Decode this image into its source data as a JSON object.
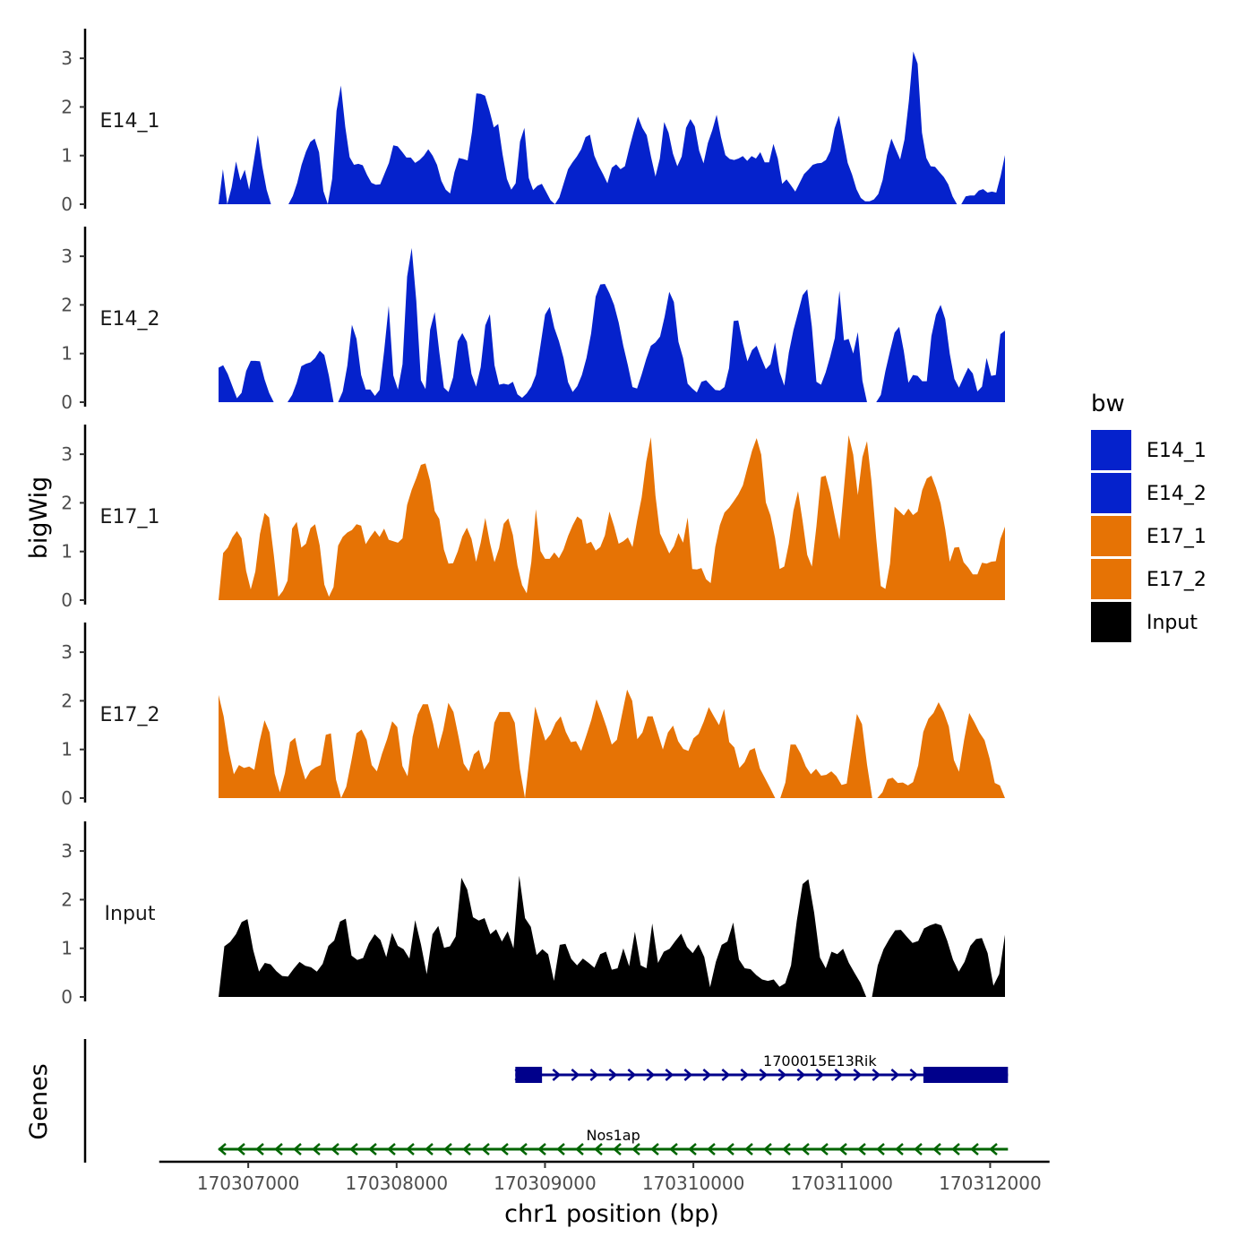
{
  "chart_data": {
    "type": "area",
    "y_axis_title": "bigWig",
    "x_axis_title": "chr1 position (bp)",
    "genes_axis_title": "Genes",
    "ylim": [
      0,
      3.6
    ],
    "y_ticks": [
      "0",
      "1",
      "2",
      "3"
    ],
    "x_range": [
      170306400,
      170312400
    ],
    "x_data_range": [
      170306800,
      170312100
    ],
    "x_ticks": [
      {
        "value": 170307000,
        "label": "170307000"
      },
      {
        "value": 170308000,
        "label": "170308000"
      },
      {
        "value": 170309000,
        "label": "170309000"
      },
      {
        "value": 170310000,
        "label": "170310000"
      },
      {
        "value": 170311000,
        "label": "170311000"
      },
      {
        "value": 170312000,
        "label": "170312000"
      }
    ],
    "legend": {
      "title": "bw",
      "entries": [
        {
          "label": "E14_1",
          "color": "#0522cc"
        },
        {
          "label": "E14_2",
          "color": "#0522cc"
        },
        {
          "label": "E17_1",
          "color": "#e67305"
        },
        {
          "label": "E17_2",
          "color": "#e67305"
        },
        {
          "label": "Input",
          "color": "#000000"
        }
      ]
    },
    "tracks": [
      {
        "name": "E14_1",
        "color": "#0522cc",
        "values": [
          0.0,
          0.72,
          0.0,
          0.35,
          0.88,
          0.49,
          0.71,
          0.3,
          0.85,
          1.42,
          0.78,
          0.3,
          0.0,
          0.0,
          0.0,
          0.0,
          0.0,
          0.17,
          0.44,
          0.81,
          1.08,
          1.28,
          1.35,
          1.07,
          0.27,
          0.0,
          0.52,
          1.92,
          2.44,
          1.59,
          0.97,
          0.81,
          0.83,
          0.8,
          0.6,
          0.44,
          0.4,
          0.41,
          0.63,
          0.85,
          1.21,
          1.19,
          1.08,
          0.96,
          0.96,
          0.85,
          0.91,
          1.0,
          1.13,
          1.0,
          0.81,
          0.48,
          0.3,
          0.22,
          0.66,
          0.95,
          0.93,
          0.9,
          1.48,
          2.28,
          2.27,
          2.23,
          1.93,
          1.58,
          1.65,
          1.03,
          0.52,
          0.3,
          0.43,
          1.29,
          1.57,
          0.54,
          0.29,
          0.38,
          0.42,
          0.25,
          0.08,
          0.0,
          0.14,
          0.43,
          0.72,
          0.86,
          0.98,
          1.13,
          1.38,
          1.43,
          1.0,
          0.79,
          0.62,
          0.43,
          0.75,
          0.82,
          0.72,
          0.78,
          1.15,
          1.49,
          1.8,
          1.57,
          1.42,
          0.97,
          0.57,
          0.94,
          1.69,
          1.47,
          1.04,
          0.78,
          0.98,
          1.57,
          1.75,
          1.6,
          1.1,
          0.84,
          1.26,
          1.52,
          1.84,
          1.38,
          1.01,
          0.93,
          0.91,
          0.94,
          0.99,
          0.89,
          0.99,
          0.94,
          1.07,
          0.86,
          0.86,
          1.24,
          0.94,
          0.42,
          0.51,
          0.39,
          0.26,
          0.44,
          0.62,
          0.71,
          0.81,
          0.84,
          0.85,
          0.91,
          1.09,
          1.56,
          1.82,
          1.33,
          0.85,
          0.61,
          0.31,
          0.13,
          0.06,
          0.06,
          0.1,
          0.21,
          0.5,
          1.01,
          1.35,
          1.13,
          0.92,
          1.33,
          2.12,
          3.14,
          2.89,
          1.47,
          0.95,
          0.78,
          0.77,
          0.66,
          0.56,
          0.41,
          0.16,
          0.0,
          0.0,
          0.16,
          0.18,
          0.18,
          0.28,
          0.31,
          0.24,
          0.26,
          0.24,
          0.58,
          1.01
        ]
      },
      {
        "name": "E14_2",
        "color": "#0522cc",
        "values": [
          0.71,
          0.76,
          0.58,
          0.33,
          0.08,
          0.19,
          0.64,
          0.85,
          0.85,
          0.84,
          0.47,
          0.19,
          0.0,
          0.0,
          0.0,
          0.0,
          0.15,
          0.4,
          0.74,
          0.79,
          0.82,
          0.91,
          1.06,
          0.97,
          0.54,
          0.0,
          0.0,
          0.22,
          0.75,
          1.59,
          1.3,
          0.56,
          0.26,
          0.26,
          0.13,
          0.25,
          1.05,
          1.98,
          0.55,
          0.26,
          0.78,
          2.58,
          3.17,
          2.08,
          0.45,
          0.27,
          1.49,
          1.85,
          1.03,
          0.3,
          0.21,
          0.51,
          1.25,
          1.42,
          1.24,
          0.58,
          0.32,
          0.72,
          1.58,
          1.81,
          0.76,
          0.36,
          0.38,
          0.36,
          0.42,
          0.16,
          0.09,
          0.18,
          0.32,
          0.56,
          1.17,
          1.8,
          1.96,
          1.53,
          1.26,
          0.91,
          0.41,
          0.21,
          0.33,
          0.56,
          0.91,
          1.41,
          2.17,
          2.42,
          2.43,
          2.24,
          2.0,
          1.64,
          1.16,
          0.76,
          0.31,
          0.28,
          0.57,
          0.89,
          1.16,
          1.23,
          1.35,
          1.76,
          2.27,
          2.06,
          1.24,
          0.91,
          0.38,
          0.28,
          0.2,
          0.42,
          0.45,
          0.35,
          0.25,
          0.24,
          0.31,
          0.7,
          1.67,
          1.68,
          1.21,
          0.84,
          1.07,
          1.16,
          0.91,
          0.68,
          0.78,
          1.23,
          0.62,
          0.34,
          1.02,
          1.48,
          1.84,
          2.2,
          2.32,
          1.56,
          0.42,
          0.36,
          0.61,
          0.94,
          1.32,
          2.29,
          1.27,
          1.3,
          1.0,
          1.44,
          0.44,
          0.0,
          0.0,
          0.0,
          0.15,
          0.64,
          1.05,
          1.43,
          1.55,
          1.05,
          0.4,
          0.56,
          0.54,
          0.43,
          0.43,
          1.36,
          1.8,
          2.0,
          1.71,
          0.99,
          0.48,
          0.3,
          0.51,
          0.71,
          0.59,
          0.22,
          0.32,
          0.91,
          0.54,
          0.56,
          1.4,
          1.47
        ]
      },
      {
        "name": "E17_1",
        "color": "#e67305",
        "values": [
          0.0,
          0.97,
          1.08,
          1.29,
          1.42,
          1.27,
          0.6,
          0.22,
          0.59,
          1.36,
          1.79,
          1.7,
          0.94,
          0.07,
          0.19,
          0.4,
          1.47,
          1.61,
          1.08,
          1.16,
          1.48,
          1.56,
          1.12,
          0.32,
          0.07,
          0.27,
          1.12,
          1.3,
          1.39,
          1.44,
          1.56,
          1.53,
          1.15,
          1.3,
          1.43,
          1.3,
          1.47,
          1.24,
          1.21,
          1.18,
          1.27,
          1.96,
          2.27,
          2.51,
          2.78,
          2.81,
          2.45,
          1.83,
          1.67,
          1.04,
          0.75,
          0.76,
          1.0,
          1.31,
          1.49,
          1.26,
          0.79,
          1.18,
          1.69,
          1.18,
          0.78,
          1.07,
          1.57,
          1.68,
          1.34,
          0.71,
          0.31,
          0.14,
          0.78,
          1.87,
          1.01,
          0.85,
          0.85,
          0.98,
          0.86,
          1.04,
          1.32,
          1.54,
          1.72,
          1.65,
          1.16,
          1.2,
          1.02,
          1.09,
          1.33,
          1.82,
          1.52,
          1.16,
          1.21,
          1.29,
          1.09,
          1.63,
          2.11,
          2.85,
          3.35,
          2.15,
          1.37,
          1.17,
          0.96,
          1.11,
          1.38,
          1.18,
          1.7,
          0.64,
          0.63,
          0.66,
          0.43,
          0.35,
          1.09,
          1.54,
          1.8,
          1.9,
          2.03,
          2.17,
          2.36,
          2.72,
          3.07,
          3.33,
          2.99,
          2.01,
          1.74,
          1.28,
          0.64,
          0.69,
          1.16,
          1.84,
          2.24,
          1.62,
          0.93,
          0.69,
          1.52,
          2.53,
          2.56,
          2.2,
          1.71,
          1.25,
          2.31,
          3.39,
          2.99,
          2.16,
          2.94,
          3.27,
          2.42,
          1.27,
          0.29,
          0.23,
          0.75,
          1.92,
          1.83,
          1.74,
          1.88,
          1.75,
          1.82,
          2.26,
          2.5,
          2.56,
          2.31,
          1.99,
          1.46,
          0.79,
          1.08,
          1.09,
          0.78,
          0.67,
          0.53,
          0.53,
          0.77,
          0.75,
          0.79,
          0.8,
          1.26,
          1.51
        ]
      },
      {
        "name": "E17_2",
        "color": "#e67305",
        "values": [
          2.12,
          1.68,
          0.97,
          0.49,
          0.68,
          0.62,
          0.65,
          0.58,
          1.15,
          1.6,
          1.35,
          0.5,
          0.12,
          0.51,
          1.15,
          1.24,
          0.73,
          0.38,
          0.56,
          0.63,
          0.68,
          1.3,
          1.33,
          0.38,
          0.0,
          0.23,
          0.76,
          1.33,
          1.41,
          1.2,
          0.68,
          0.55,
          0.91,
          1.21,
          1.58,
          1.46,
          0.66,
          0.45,
          1.26,
          1.72,
          1.93,
          1.93,
          1.53,
          1.01,
          1.4,
          1.96,
          1.77,
          1.26,
          0.71,
          0.55,
          0.9,
          0.99,
          0.59,
          0.75,
          1.55,
          1.77,
          1.77,
          1.77,
          1.55,
          0.6,
          0.0,
          0.93,
          1.88,
          1.52,
          1.18,
          1.31,
          1.55,
          1.68,
          1.36,
          1.15,
          1.17,
          0.97,
          1.28,
          1.61,
          2.03,
          1.76,
          1.45,
          1.1,
          1.2,
          1.72,
          2.23,
          2.0,
          1.21,
          1.35,
          1.68,
          1.68,
          1.34,
          1.0,
          1.35,
          1.49,
          1.17,
          1.01,
          0.97,
          1.23,
          1.32,
          1.57,
          1.87,
          1.68,
          1.5,
          1.83,
          1.15,
          1.04,
          0.62,
          0.74,
          0.98,
          1.03,
          0.61,
          0.41,
          0.21,
          0.0,
          0.0,
          0.32,
          1.1,
          1.1,
          0.91,
          0.65,
          0.49,
          0.6,
          0.46,
          0.48,
          0.55,
          0.45,
          0.27,
          0.3,
          1.02,
          1.73,
          1.52,
          0.68,
          0.0,
          0.0,
          0.12,
          0.39,
          0.42,
          0.31,
          0.32,
          0.26,
          0.33,
          0.67,
          1.36,
          1.63,
          1.75,
          1.97,
          1.77,
          1.47,
          0.78,
          0.54,
          1.2,
          1.75,
          1.56,
          1.35,
          1.19,
          0.81,
          0.31,
          0.26,
          0.0
        ]
      },
      {
        "name": "Input",
        "color": "#000000",
        "values": [
          0.0,
          1.04,
          1.13,
          1.29,
          1.54,
          1.6,
          0.96,
          0.52,
          0.7,
          0.67,
          0.53,
          0.43,
          0.42,
          0.58,
          0.72,
          0.64,
          0.61,
          0.52,
          0.68,
          1.05,
          1.16,
          1.55,
          1.61,
          0.85,
          0.76,
          0.8,
          1.1,
          1.29,
          1.17,
          0.82,
          1.32,
          1.05,
          0.98,
          0.79,
          1.58,
          1.08,
          0.47,
          1.29,
          1.46,
          1.01,
          1.04,
          1.24,
          2.45,
          2.21,
          1.64,
          1.57,
          1.62,
          1.29,
          1.39,
          1.14,
          1.35,
          1.0,
          2.49,
          1.62,
          1.44,
          0.86,
          0.98,
          0.88,
          0.33,
          1.07,
          1.09,
          0.78,
          0.65,
          0.79,
          0.7,
          0.6,
          0.88,
          0.93,
          0.56,
          0.59,
          1.0,
          0.63,
          1.34,
          0.65,
          0.59,
          1.51,
          0.7,
          0.93,
          0.99,
          1.15,
          1.3,
          1.03,
          0.9,
          1.08,
          0.82,
          0.2,
          0.72,
          1.07,
          1.14,
          1.53,
          0.77,
          0.59,
          0.57,
          0.45,
          0.36,
          0.33,
          0.36,
          0.21,
          0.28,
          0.65,
          1.57,
          2.32,
          2.42,
          1.73,
          0.81,
          0.59,
          0.93,
          0.88,
          0.99,
          0.7,
          0.49,
          0.29,
          0.0,
          0.0,
          0.65,
          0.98,
          1.19,
          1.37,
          1.38,
          1.24,
          1.11,
          1.15,
          1.41,
          1.47,
          1.51,
          1.47,
          1.16,
          0.77,
          0.52,
          0.72,
          1.05,
          1.19,
          1.21,
          0.9,
          0.23,
          0.47,
          1.28
        ]
      }
    ],
    "genes": [
      {
        "name": "1700015E13Rik",
        "strand": "+",
        "color": "#00008b",
        "start": 170308800,
        "end": 170312120,
        "exons": [
          [
            170308800,
            170308980
          ],
          [
            170311550,
            170312120
          ]
        ]
      },
      {
        "name": "Nos1ap",
        "strand": "-",
        "color": "#006400",
        "start": 170306800,
        "end": 170312120,
        "exons": []
      }
    ]
  }
}
